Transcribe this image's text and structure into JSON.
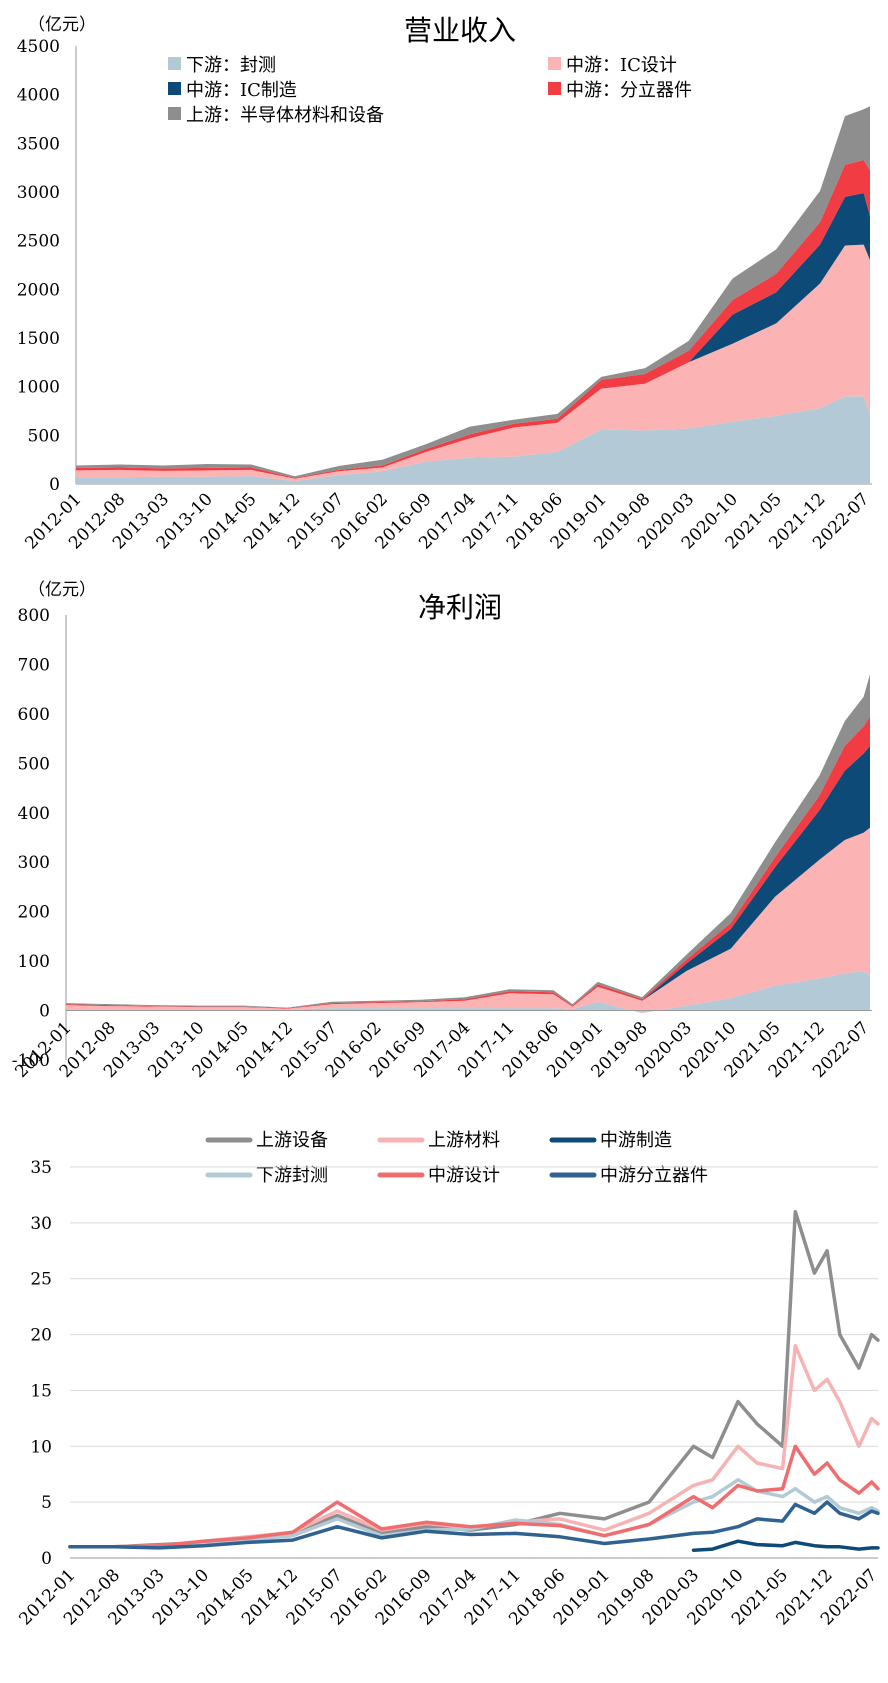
{
  "revenue_chart": {
    "title": "营业收入",
    "unit": "（亿元）",
    "y_ticks": [
      "4500",
      "4000",
      "3500",
      "3000",
      "2500",
      "2000",
      "1500",
      "1000",
      "500",
      "0"
    ],
    "x_ticks": [
      "2012-01",
      "2012-08",
      "2013-03",
      "2013-10",
      "2014-05",
      "2014-12",
      "2015-07",
      "2016-02",
      "2016-09",
      "2017-04",
      "2017-11",
      "2018-06",
      "2019-01",
      "2019-08",
      "2020-03",
      "2020-10",
      "2021-05",
      "2021-12",
      "2022-07"
    ],
    "legend": [
      "下游：封测",
      "中游：IC设计",
      "中游：IC制造",
      "中游：分立器件",
      "上游：半导体材料和设备"
    ]
  },
  "profit_chart": {
    "title": "净利润",
    "unit": "（亿元）",
    "y_ticks": [
      "800",
      "700",
      "600",
      "500",
      "400",
      "300",
      "200",
      "100",
      "0",
      "-100"
    ],
    "x_ticks": [
      "2012-01",
      "2012-08",
      "2013-03",
      "2013-10",
      "2014-05",
      "2014-12",
      "2015-07",
      "2016-02",
      "2016-09",
      "2017-04",
      "2017-11",
      "2018-06",
      "2019-01",
      "2019-08",
      "2020-03",
      "2020-10",
      "2021-05",
      "2021-12",
      "2022-07"
    ]
  },
  "index_chart": {
    "y_ticks": [
      "35",
      "30",
      "25",
      "20",
      "15",
      "10",
      "5",
      "0"
    ],
    "x_ticks": [
      "2012-01",
      "2012-08",
      "2013-03",
      "2013-10",
      "2014-05",
      "2014-12",
      "2015-07",
      "2016-02",
      "2016-09",
      "2017-04",
      "2017-11",
      "2018-06",
      "2019-01",
      "2019-08",
      "2020-03",
      "2020-10",
      "2021-05",
      "2021-12",
      "2022-07"
    ],
    "legend": [
      "上游设备",
      "上游材料",
      "中游制造",
      "下游封测",
      "中游设计",
      "中游分立器件"
    ]
  },
  "chart_data": [
    {
      "type": "area",
      "title": "营业收入",
      "ylabel": "（亿元）",
      "ylim": [
        0,
        4500
      ],
      "stacked": true,
      "x": [
        "2012-01",
        "2012-08",
        "2013-03",
        "2013-10",
        "2014-05",
        "2014-12",
        "2015-07",
        "2016-02",
        "2016-09",
        "2017-04",
        "2017-11",
        "2018-06",
        "2019-01",
        "2019-08",
        "2020-03",
        "2020-10",
        "2021-05",
        "2021-12",
        "2022-04",
        "2022-07",
        "2022-08"
      ],
      "series": [
        {
          "name": "下游：封测",
          "color": "#b3c9d6",
          "values": [
            70,
            70,
            75,
            75,
            80,
            30,
            90,
            130,
            230,
            270,
            280,
            330,
            560,
            550,
            570,
            640,
            700,
            780,
            900,
            900,
            700
          ]
        },
        {
          "name": "中游：IC设计",
          "color": "#fbb3b4",
          "values": [
            70,
            75,
            60,
            65,
            65,
            25,
            40,
            40,
            100,
            200,
            300,
            300,
            420,
            480,
            680,
            800,
            950,
            1280,
            1550,
            1560,
            1600
          ]
        },
        {
          "name": "中游：IC制造",
          "color": "#0d4a78",
          "values": [
            0,
            0,
            0,
            0,
            0,
            0,
            0,
            0,
            0,
            0,
            0,
            0,
            0,
            0,
            0,
            300,
            320,
            400,
            500,
            530,
            450
          ]
        },
        {
          "name": "中游：分立器件",
          "color": "#f03c42",
          "values": [
            25,
            25,
            25,
            25,
            25,
            10,
            15,
            20,
            30,
            40,
            40,
            40,
            90,
            100,
            120,
            150,
            190,
            230,
            330,
            340,
            470
          ]
        },
        {
          "name": "上游：半导体材料和设备",
          "color": "#8e8e8e",
          "values": [
            25,
            30,
            30,
            40,
            30,
            15,
            40,
            60,
            50,
            80,
            40,
            50,
            30,
            60,
            100,
            220,
            250,
            320,
            500,
            520,
            660
          ]
        }
      ]
    },
    {
      "type": "area",
      "title": "净利润",
      "ylabel": "（亿元）",
      "ylim": [
        -100,
        800
      ],
      "stacked": true,
      "x": [
        "2012-01",
        "2012-08",
        "2013-03",
        "2013-10",
        "2014-05",
        "2014-12",
        "2015-07",
        "2016-02",
        "2016-09",
        "2017-04",
        "2017-11",
        "2018-06",
        "2018-09",
        "2019-01",
        "2019-08",
        "2020-03",
        "2020-10",
        "2021-05",
        "2021-12",
        "2022-04",
        "2022-07",
        "2022-08"
      ],
      "series": [
        {
          "name": "下游：封测",
          "color": "#b3c9d6",
          "values": [
            3,
            3,
            3,
            3,
            3,
            2,
            5,
            5,
            5,
            5,
            5,
            5,
            3,
            18,
            -5,
            10,
            25,
            50,
            65,
            75,
            80,
            70
          ]
        },
        {
          "name": "中游：IC设计",
          "color": "#fbb3b4",
          "values": [
            8,
            6,
            5,
            4,
            4,
            2,
            8,
            10,
            12,
            15,
            30,
            28,
            5,
            30,
            25,
            70,
            100,
            180,
            240,
            270,
            280,
            300
          ]
        },
        {
          "name": "中游：IC制造",
          "color": "#0d4a78",
          "values": [
            0,
            0,
            0,
            0,
            0,
            0,
            0,
            0,
            0,
            0,
            0,
            0,
            0,
            0,
            0,
            15,
            40,
            60,
            100,
            140,
            160,
            165
          ]
        },
        {
          "name": "中游：分立器件",
          "color": "#f03c42",
          "values": [
            2,
            2,
            1,
            1,
            1,
            1,
            2,
            2,
            2,
            3,
            4,
            4,
            2,
            5,
            3,
            8,
            12,
            20,
            30,
            50,
            55,
            60
          ]
        },
        {
          "name": "上游：半导体材料和设备",
          "color": "#8e8e8e",
          "values": [
            2,
            2,
            2,
            2,
            2,
            1,
            3,
            3,
            3,
            4,
            4,
            4,
            3,
            5,
            4,
            10,
            20,
            30,
            40,
            50,
            60,
            85
          ]
        }
      ]
    },
    {
      "type": "line",
      "ylim": [
        0,
        35
      ],
      "x": [
        "2012-01",
        "2012-08",
        "2013-03",
        "2013-10",
        "2014-05",
        "2014-12",
        "2015-07",
        "2016-02",
        "2016-09",
        "2017-04",
        "2017-11",
        "2018-06",
        "2019-01",
        "2019-08",
        "2020-03",
        "2020-06",
        "2020-10",
        "2021-01",
        "2021-05",
        "2021-07",
        "2021-10",
        "2021-12",
        "2022-02",
        "2022-05",
        "2022-07",
        "2022-08"
      ],
      "series": [
        {
          "name": "上游设备",
          "color": "#8e8e8e",
          "values": [
            1,
            1,
            1.2,
            1.4,
            1.8,
            2.2,
            3.8,
            2.2,
            2.8,
            2.5,
            3,
            4,
            3.5,
            5,
            10,
            9,
            14,
            12,
            10,
            31,
            25.5,
            27.5,
            20,
            17,
            20,
            19.5
          ]
        },
        {
          "name": "上游材料",
          "color": "#f7b2b4",
          "values": [
            1,
            1,
            1.1,
            1.5,
            1.9,
            2.3,
            4.2,
            2.5,
            3.1,
            2.7,
            3.2,
            3.5,
            2.5,
            4,
            6.5,
            7,
            10,
            8.5,
            8,
            19,
            15,
            16,
            14,
            10,
            12.5,
            12
          ]
        },
        {
          "name": "中游制造",
          "color": "#0d4a78",
          "values": [
            null,
            null,
            null,
            null,
            null,
            null,
            null,
            null,
            null,
            null,
            null,
            null,
            null,
            null,
            0.7,
            0.8,
            1.5,
            1.2,
            1.1,
            1.4,
            1.1,
            1.0,
            1.0,
            0.8,
            0.9,
            0.9
          ]
        },
        {
          "name": "下游封测",
          "color": "#b3c9d6",
          "values": [
            1,
            1,
            1.1,
            1.3,
            1.6,
            2.0,
            3.5,
            2.0,
            2.5,
            2.6,
            3.4,
            3.0,
            2.0,
            3.0,
            5,
            5.5,
            7,
            6,
            5.5,
            6.2,
            5,
            5.5,
            4.5,
            4.0,
            4.5,
            4.2
          ]
        },
        {
          "name": "中游设计",
          "color": "#f06d6f",
          "values": [
            1,
            1,
            1.1,
            1.5,
            1.8,
            2.3,
            5,
            2.6,
            3.2,
            2.8,
            3.1,
            2.9,
            2.0,
            3.0,
            5.5,
            4.5,
            6.5,
            6,
            6.2,
            10,
            7.5,
            8.5,
            7.0,
            5.8,
            6.8,
            6.2
          ]
        },
        {
          "name": "中游分立器件",
          "color": "#2f6290",
          "values": [
            1,
            1,
            0.9,
            1.1,
            1.4,
            1.6,
            2.8,
            1.8,
            2.4,
            2.1,
            2.2,
            1.9,
            1.3,
            1.7,
            2.2,
            2.3,
            2.8,
            3.5,
            3.3,
            4.8,
            4.0,
            5.0,
            4.0,
            3.5,
            4.2,
            4.0
          ]
        }
      ]
    }
  ]
}
